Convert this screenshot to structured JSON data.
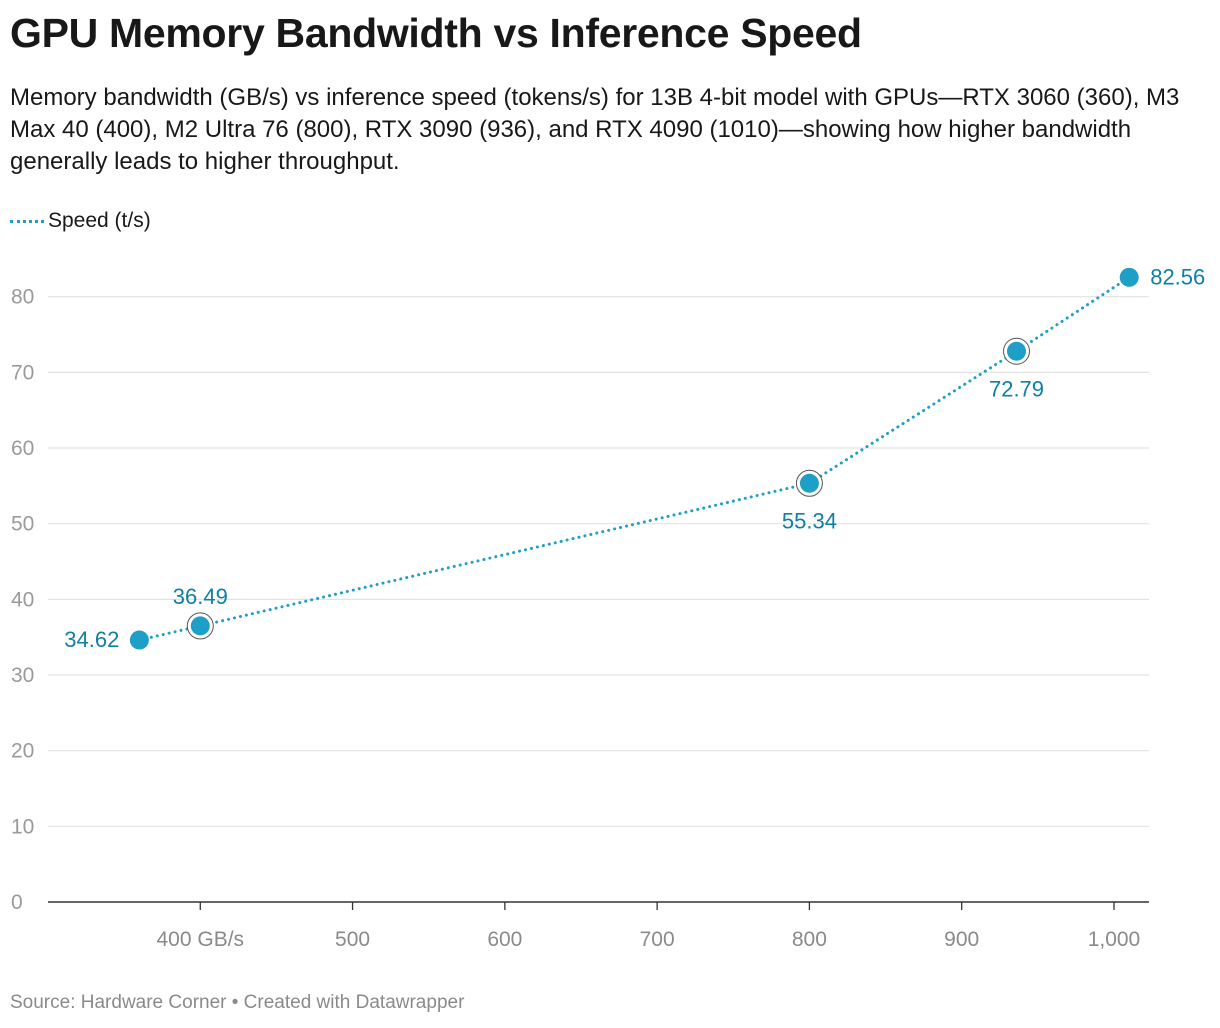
{
  "title": "GPU Memory Bandwidth vs Inference Speed",
  "subtitle": "Memory bandwidth (GB/s) vs inference speed (tokens/s) for 13B 4-bit model with GPUs—RTX 3060 (360), M3 Max 40 (400), M2 Ultra 76 (800), RTX 3090 (936), and RTX 4090 (1010)—showing how higher bandwidth generally leads to higher throughput.",
  "footer": "Source: Hardware Corner • Created with Datawrapper",
  "colors": {
    "series": "#1d9fc7",
    "label": "#0f7fa6",
    "grid": "#e3e3e3",
    "tick": "#9a9a9a",
    "axis": "#333333"
  },
  "chart_data": {
    "type": "line",
    "xlabel": "",
    "ylabel": "",
    "xlim": [
      300,
      1023
    ],
    "ylim": [
      0,
      83
    ],
    "grid": true,
    "legend_position": "top-left",
    "x_ticks": [
      400,
      500,
      600,
      700,
      800,
      900,
      1000
    ],
    "x_tick_labels": [
      "400 GB/s",
      "500",
      "600",
      "700",
      "800",
      "900",
      "1,000"
    ],
    "y_ticks": [
      0,
      10,
      20,
      30,
      40,
      50,
      60,
      70,
      80
    ],
    "y_tick_labels": [
      "0",
      "10",
      "20",
      "30",
      "40",
      "50",
      "60",
      "70",
      "80"
    ],
    "series": [
      {
        "name": "Speed (t/s)",
        "line_style": "dotted",
        "x": [
          360,
          400,
          800,
          936,
          1010
        ],
        "y": [
          34.62,
          36.49,
          55.34,
          72.79,
          82.56
        ],
        "labels": [
          "34.62",
          "36.49",
          "55.34",
          "72.79",
          "82.56"
        ],
        "label_positions": [
          "left",
          "above",
          "below",
          "below",
          "right"
        ],
        "ringed": [
          false,
          true,
          true,
          true,
          false
        ]
      }
    ]
  }
}
